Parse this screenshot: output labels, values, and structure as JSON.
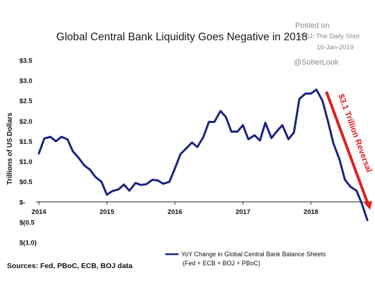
{
  "chart_data": {
    "type": "line",
    "title": "Global Central Bank Liquidity Goes Negative in 2018",
    "ylabel": "Trillions of US Dollars",
    "y_tick_labels": [
      "$3.5",
      "$3.0",
      "$2.5",
      "$2.0",
      "$1.5",
      "$1.0",
      "$0.5",
      "$-",
      "$(0.5",
      "$(1.0)"
    ],
    "y_tick_values": [
      3.5,
      3.0,
      2.5,
      2.0,
      1.5,
      1.0,
      0.5,
      0,
      -0.5,
      -1.0
    ],
    "x_tick_labels": [
      "2014",
      "2015",
      "2016",
      "2017",
      "2018"
    ],
    "x_tick_values": [
      2014,
      2015,
      2016,
      2017,
      2018
    ],
    "ylim": [
      -1.0,
      3.5
    ],
    "xlim": [
      2014,
      2018.85
    ],
    "grid": false,
    "legend_position": "bottom-right",
    "series": [
      {
        "name": "YoY Change in Global Central Bank Balance Sheets (Fed + ECB + BOJ + PBoC)",
        "color": "#1a237e",
        "x": [
          2014.0,
          2014.08,
          2014.17,
          2014.25,
          2014.33,
          2014.42,
          2014.5,
          2014.58,
          2014.67,
          2014.75,
          2014.83,
          2014.92,
          2015.0,
          2015.08,
          2015.17,
          2015.25,
          2015.33,
          2015.42,
          2015.5,
          2015.58,
          2015.67,
          2015.75,
          2015.83,
          2015.92,
          2016.0,
          2016.08,
          2016.17,
          2016.25,
          2016.33,
          2016.42,
          2016.5,
          2016.58,
          2016.67,
          2016.75,
          2016.83,
          2016.92,
          2017.0,
          2017.08,
          2017.17,
          2017.25,
          2017.33,
          2017.42,
          2017.5,
          2017.58,
          2017.67,
          2017.75,
          2017.83,
          2017.92,
          2018.0,
          2018.08,
          2018.17,
          2018.25,
          2018.33,
          2018.42,
          2018.5,
          2018.58,
          2018.67,
          2018.75,
          2018.83
        ],
        "values": [
          1.2,
          1.57,
          1.61,
          1.5,
          1.61,
          1.55,
          1.25,
          1.1,
          0.9,
          0.8,
          0.62,
          0.5,
          0.18,
          0.27,
          0.31,
          0.43,
          0.28,
          0.47,
          0.42,
          0.44,
          0.55,
          0.53,
          0.45,
          0.5,
          0.83,
          1.18,
          1.33,
          1.47,
          1.36,
          1.61,
          1.98,
          1.98,
          2.25,
          2.1,
          1.74,
          1.74,
          1.9,
          1.55,
          1.65,
          1.52,
          1.96,
          1.58,
          1.75,
          1.9,
          1.55,
          1.72,
          2.55,
          2.68,
          2.68,
          2.78,
          2.5,
          2.0,
          1.45,
          1.05,
          0.55,
          0.38,
          0.28,
          -0.05,
          -0.45
        ]
      }
    ],
    "annotations": [
      "$3.1 Trillion Reversal"
    ]
  },
  "source_text": "Sources: Fed, PBoC, ECB, BOJ data",
  "legend": {
    "line1": "YoY Change in Global Central Bank Balance Sheets",
    "line2": "(Fed + ECB + BOJ + PBoC)"
  },
  "watermark": {
    "posted": "Posted on",
    "outlet": "WSJ: The Daily Shot",
    "date": "16-Jan-2019",
    "handle": "@SoberLook"
  },
  "colors": {
    "line": "#1a237e",
    "annotation": "#e02020",
    "watermark": "#8a8a8a"
  }
}
